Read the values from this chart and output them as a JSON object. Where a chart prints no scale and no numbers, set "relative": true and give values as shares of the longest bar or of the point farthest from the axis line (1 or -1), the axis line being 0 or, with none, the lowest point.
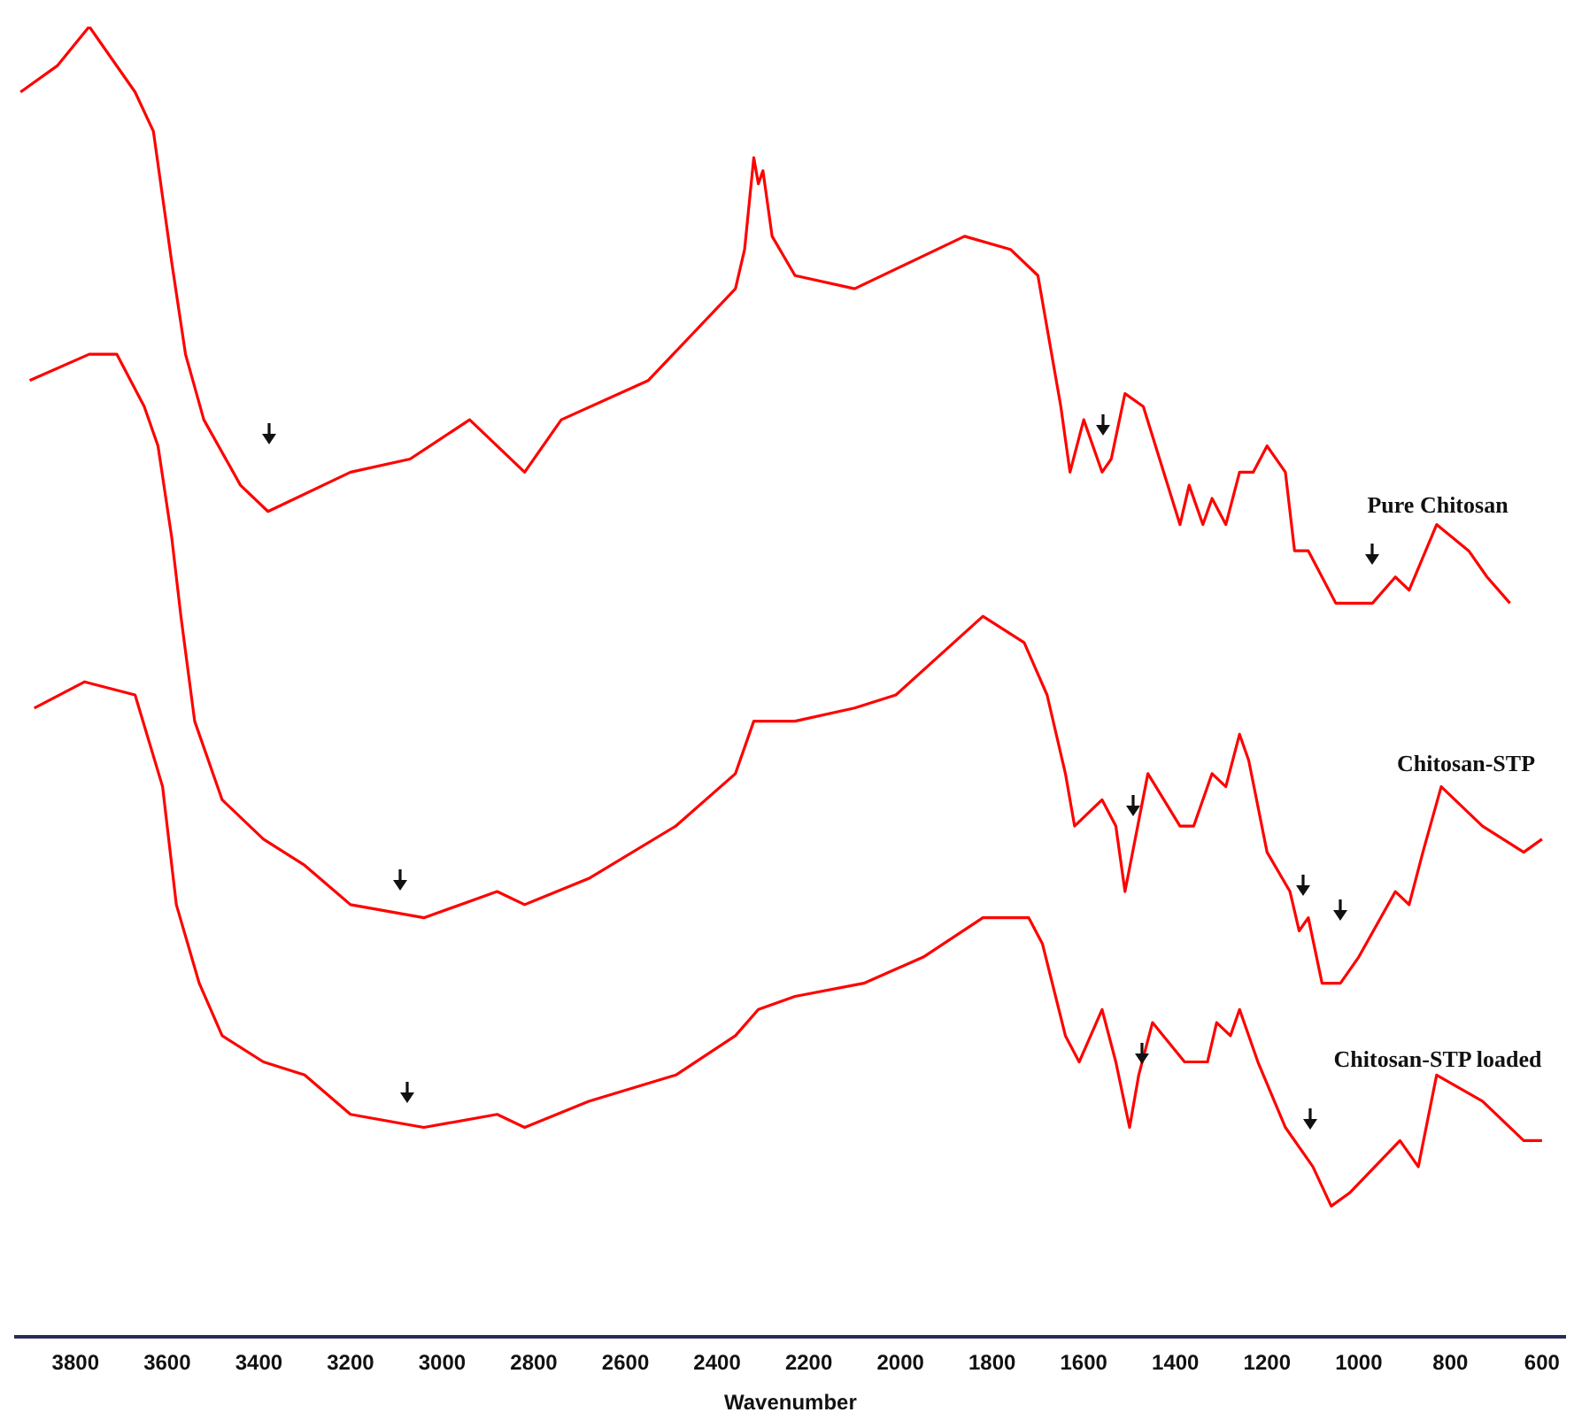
{
  "chart_data": {
    "type": "line",
    "xlabel": "Wavenumber",
    "relative": true,
    "xlim": [
      3930,
      550
    ],
    "xticks": [
      3800,
      3600,
      3400,
      3200,
      3000,
      2800,
      2600,
      2400,
      2200,
      2000,
      1800,
      1600,
      1400,
      1200,
      1000,
      800,
      600
    ],
    "marker": "none",
    "grid": false,
    "legend": false,
    "series": [
      {
        "name": "Pure Chitosan",
        "color": "#ff0000",
        "x": [
          3920,
          3840,
          3770,
          3670,
          3630,
          3590,
          3560,
          3520,
          3440,
          3380,
          3200,
          3070,
          2940,
          2820,
          2740,
          2550,
          2360,
          2340,
          2320,
          2310,
          2300,
          2280,
          2230,
          2100,
          1860,
          1760,
          1700,
          1680,
          1650,
          1630,
          1600,
          1560,
          1540,
          1510,
          1470,
          1390,
          1370,
          1340,
          1320,
          1290,
          1260,
          1230,
          1200,
          1160,
          1140,
          1110,
          1050,
          970,
          920,
          890,
          830,
          760,
          720,
          670
        ],
        "values": [
          0.95,
          0.97,
          1.0,
          0.95,
          0.92,
          0.82,
          0.75,
          0.7,
          0.65,
          0.63,
          0.66,
          0.67,
          0.7,
          0.66,
          0.7,
          0.73,
          0.8,
          0.83,
          0.9,
          0.88,
          0.89,
          0.84,
          0.81,
          0.8,
          0.84,
          0.83,
          0.81,
          0.77,
          0.71,
          0.66,
          0.7,
          0.66,
          0.67,
          0.72,
          0.71,
          0.62,
          0.65,
          0.62,
          0.64,
          0.62,
          0.66,
          0.66,
          0.68,
          0.66,
          0.6,
          0.6,
          0.56,
          0.56,
          0.58,
          0.57,
          0.62,
          0.6,
          0.58,
          0.56
        ]
      },
      {
        "name": "Chitosan-STP",
        "color": "#ff0000",
        "x": [
          3900,
          3770,
          3710,
          3650,
          3620,
          3590,
          3570,
          3540,
          3480,
          3390,
          3300,
          3200,
          3040,
          2880,
          2820,
          2680,
          2490,
          2360,
          2320,
          2230,
          2100,
          2010,
          1820,
          1730,
          1680,
          1640,
          1620,
          1560,
          1530,
          1510,
          1460,
          1390,
          1360,
          1320,
          1290,
          1260,
          1240,
          1200,
          1150,
          1130,
          1110,
          1080,
          1040,
          1000,
          920,
          890,
          860,
          820,
          730,
          640,
          600
        ],
        "values": [
          0.73,
          0.75,
          0.75,
          0.71,
          0.68,
          0.61,
          0.55,
          0.47,
          0.41,
          0.38,
          0.36,
          0.33,
          0.32,
          0.34,
          0.33,
          0.35,
          0.39,
          0.43,
          0.47,
          0.47,
          0.48,
          0.49,
          0.55,
          0.53,
          0.49,
          0.43,
          0.39,
          0.41,
          0.39,
          0.34,
          0.43,
          0.39,
          0.39,
          0.43,
          0.42,
          0.46,
          0.44,
          0.37,
          0.34,
          0.31,
          0.32,
          0.27,
          0.27,
          0.29,
          0.34,
          0.33,
          0.37,
          0.42,
          0.39,
          0.37,
          0.38
        ]
      },
      {
        "name": "Chitosan-STP loaded",
        "color": "#ff0000",
        "x": [
          3890,
          3780,
          3670,
          3610,
          3580,
          3530,
          3480,
          3390,
          3300,
          3200,
          3040,
          2880,
          2820,
          2680,
          2490,
          2360,
          2310,
          2230,
          2080,
          1950,
          1820,
          1720,
          1690,
          1640,
          1610,
          1560,
          1530,
          1500,
          1480,
          1450,
          1380,
          1330,
          1310,
          1280,
          1260,
          1220,
          1160,
          1100,
          1060,
          1020,
          910,
          870,
          830,
          730,
          640,
          600
        ],
        "values": [
          0.48,
          0.5,
          0.49,
          0.42,
          0.33,
          0.27,
          0.23,
          0.21,
          0.2,
          0.17,
          0.16,
          0.17,
          0.16,
          0.18,
          0.2,
          0.23,
          0.25,
          0.26,
          0.27,
          0.29,
          0.32,
          0.32,
          0.3,
          0.23,
          0.21,
          0.25,
          0.21,
          0.16,
          0.2,
          0.24,
          0.21,
          0.21,
          0.24,
          0.23,
          0.25,
          0.21,
          0.16,
          0.13,
          0.1,
          0.11,
          0.15,
          0.13,
          0.2,
          0.18,
          0.15,
          0.15
        ]
      }
    ]
  }
}
